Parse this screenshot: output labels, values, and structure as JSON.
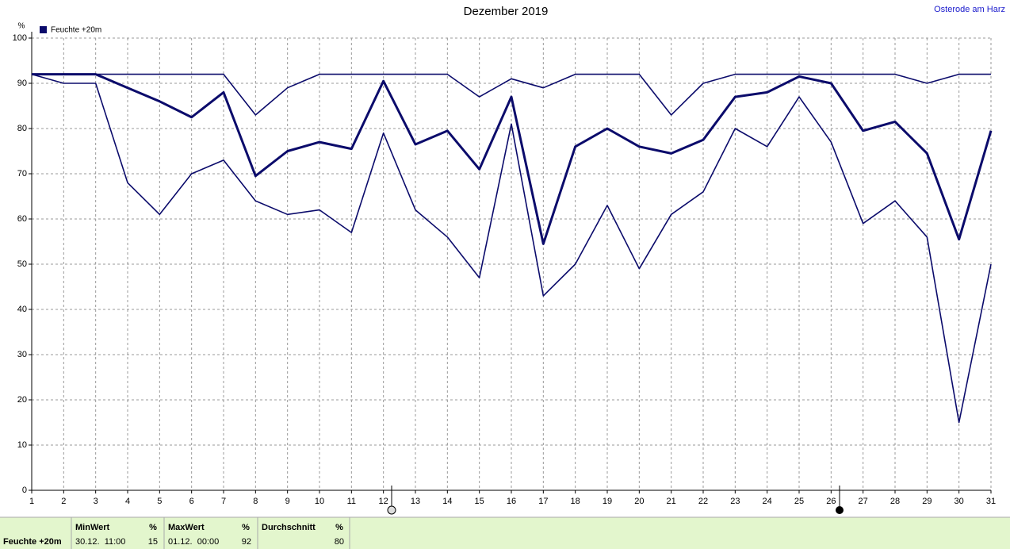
{
  "chart_data": {
    "type": "line",
    "title": "Dezember 2019",
    "location": "Osterode am Harz",
    "y_label": "%",
    "x": [
      1,
      2,
      3,
      4,
      5,
      6,
      7,
      8,
      9,
      10,
      11,
      12,
      13,
      14,
      15,
      16,
      17,
      18,
      19,
      20,
      21,
      22,
      23,
      24,
      25,
      26,
      27,
      28,
      29,
      30,
      31
    ],
    "xlim": [
      1,
      31
    ],
    "xticks": [
      1,
      2,
      3,
      4,
      5,
      6,
      7,
      8,
      9,
      10,
      11,
      12,
      13,
      14,
      15,
      16,
      17,
      18,
      19,
      20,
      21,
      22,
      23,
      24,
      25,
      26,
      27,
      28,
      29,
      30,
      31
    ],
    "ylim": [
      0,
      100
    ],
    "yticks": [
      0,
      10,
      20,
      30,
      40,
      50,
      60,
      70,
      80,
      90,
      100
    ],
    "grid": true,
    "legend": "top-left",
    "series": [
      {
        "color": "#0b0b6b",
        "values": [
          92,
          92,
          92,
          92,
          92,
          92,
          92,
          83,
          89,
          92,
          92,
          92,
          92,
          92,
          87,
          91,
          89,
          92,
          92,
          92,
          83,
          90,
          92,
          92,
          92,
          92,
          92,
          92,
          90,
          92,
          92
        ]
      },
      {
        "name": "Feuchte +20m",
        "color": "#0b0b6b",
        "values": [
          92,
          92,
          92,
          89,
          86,
          82.5,
          88,
          69.5,
          75,
          77,
          75.5,
          90.5,
          76.5,
          79.5,
          71,
          87,
          54.5,
          76,
          80,
          76,
          74.5,
          77.5,
          87,
          88,
          91.5,
          90,
          79.5,
          81.5,
          74.5,
          55.5,
          79.5
        ]
      },
      {
        "color": "#0b0b6b",
        "values": [
          92,
          90,
          90,
          68,
          61,
          70,
          73,
          64,
          61,
          62,
          57,
          79,
          62,
          56,
          47,
          81,
          43,
          50,
          63,
          49,
          61,
          66,
          80,
          76,
          87,
          77,
          59,
          64,
          56,
          15,
          50
        ]
      }
    ]
  },
  "summary": {
    "label": "Feuchte +20m",
    "columns": [
      {
        "header": "MinWert",
        "unit": "%",
        "time": "30.12.  11:00",
        "value": 15
      },
      {
        "header": "MaxWert",
        "unit": "%",
        "time": "01.12.  00:00",
        "value": 92
      },
      {
        "header": "Durchschnitt",
        "unit": "%",
        "value": 80
      }
    ]
  }
}
